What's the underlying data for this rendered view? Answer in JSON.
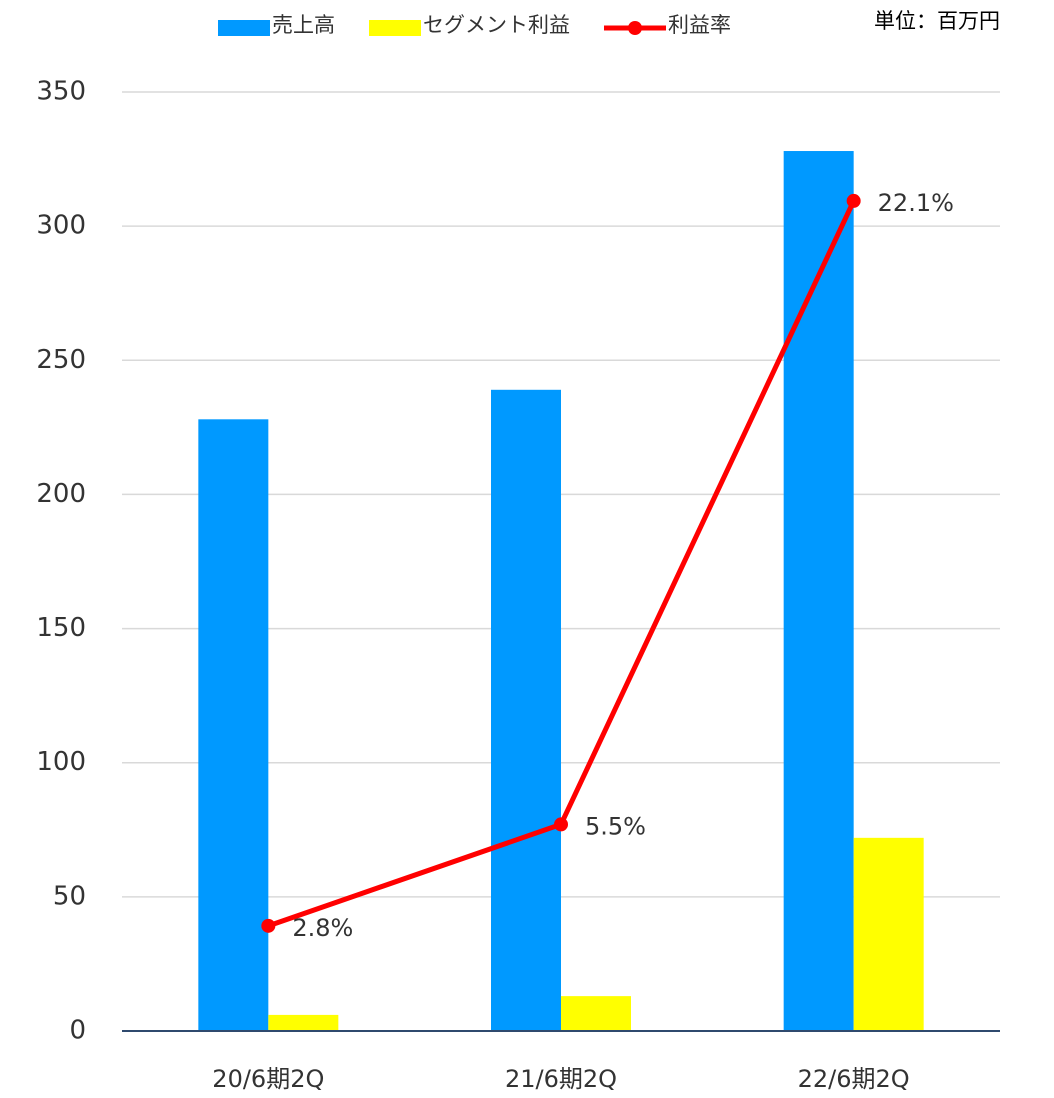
{
  "chart_data": {
    "type": "bar-line",
    "annotation": "単位：百万円",
    "categories": [
      "20/6期2Q",
      "21/6期2Q",
      "22/6期2Q"
    ],
    "series": [
      {
        "name": "売上高",
        "type": "bar",
        "color": "#0099ff",
        "values": [
          228,
          239,
          328
        ]
      },
      {
        "name": "セグメント利益",
        "type": "bar",
        "color": "#ffff00",
        "values": [
          6,
          13,
          72
        ]
      },
      {
        "name": "利益率",
        "type": "line",
        "axis": "y2",
        "color": "#ff0000",
        "values": [
          2.8,
          5.5,
          22.1
        ],
        "value_labels": [
          "2.8%",
          "5.5%",
          "22.1%"
        ]
      }
    ],
    "ylim": [
      0,
      350
    ],
    "yticks": [
      0,
      50,
      100,
      150,
      200,
      250,
      300,
      350
    ],
    "y2lim": [
      0,
      25
    ],
    "grid": true
  }
}
